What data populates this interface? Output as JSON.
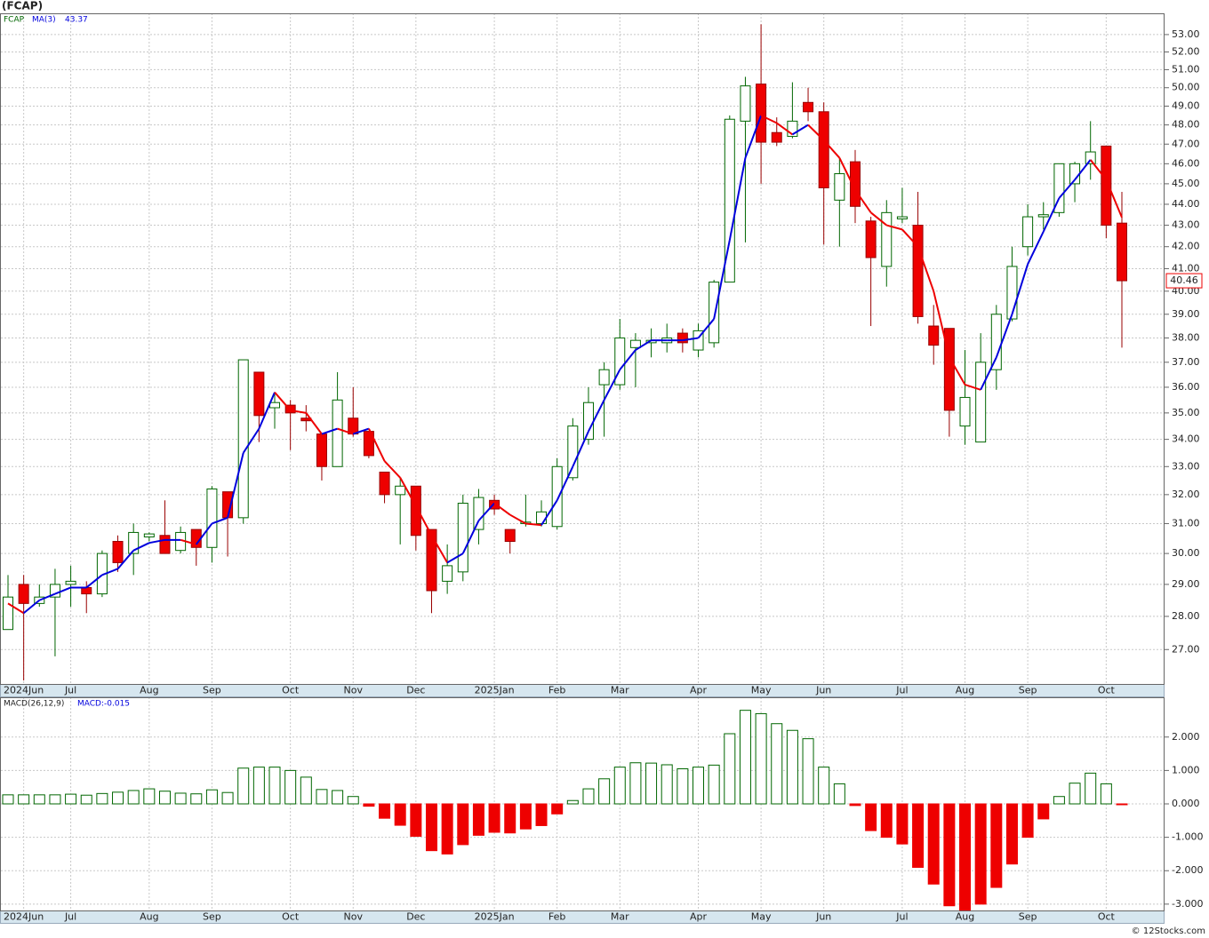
{
  "chart_data": [
    {
      "type": "candlestick",
      "title": "(FCAP)",
      "symbol": "FCAP",
      "ma_name": "MA(3)",
      "categories": [
        null,
        "2024Jun",
        null,
        null,
        "Jul",
        null,
        null,
        null,
        null,
        "Aug",
        null,
        null,
        null,
        "Sep",
        null,
        null,
        null,
        null,
        "Oct",
        null,
        null,
        null,
        "Nov",
        null,
        null,
        null,
        "Dec",
        null,
        null,
        null,
        null,
        "2025Jan",
        null,
        null,
        null,
        "Feb",
        null,
        null,
        null,
        "Mar",
        null,
        null,
        null,
        null,
        "Apr",
        null,
        null,
        null,
        "May",
        null,
        null,
        null,
        "Jun",
        null,
        null,
        null,
        null,
        "Jul",
        null,
        null,
        null,
        "Aug",
        null,
        null,
        null,
        "Sep",
        null,
        null,
        null,
        null,
        "Oct",
        null
      ],
      "open": [
        27.6,
        29.0,
        28.4,
        28.6,
        29.0,
        28.9,
        28.7,
        30.4,
        30.0,
        30.55,
        30.6,
        30.1,
        30.8,
        30.2,
        32.1,
        31.2,
        36.6,
        35.2,
        35.3,
        34.8,
        34.2,
        33.0,
        34.8,
        34.3,
        32.8,
        32.0,
        32.3,
        30.8,
        29.1,
        29.4,
        30.8,
        31.8,
        30.8,
        31.0,
        31.0,
        30.9,
        32.6,
        34.0,
        36.1,
        36.1,
        37.6,
        37.8,
        37.8,
        38.2,
        37.5,
        37.8,
        40.4,
        48.2,
        50.2,
        47.6,
        47.4,
        49.2,
        48.7,
        44.2,
        46.1,
        43.2,
        41.1,
        43.3,
        43.0,
        38.5,
        38.4,
        34.5,
        33.9,
        36.7,
        38.8,
        42.0,
        43.4,
        43.6,
        45.0,
        46.0,
        46.9,
        43.1
      ],
      "high": [
        29.3,
        29.3,
        29.0,
        29.5,
        29.6,
        29.1,
        30.1,
        30.6,
        31.0,
        30.7,
        31.8,
        30.9,
        30.8,
        32.3,
        32.1,
        37.1,
        36.6,
        35.8,
        35.5,
        35.3,
        34.2,
        36.6,
        36.0,
        34.3,
        32.8,
        32.6,
        32.3,
        30.8,
        30.3,
        32.0,
        32.2,
        32.0,
        30.8,
        32.0,
        31.8,
        33.3,
        34.8,
        36.0,
        37.0,
        38.8,
        38.2,
        38.4,
        38.6,
        38.4,
        38.6,
        40.5,
        48.5,
        50.6,
        53.6,
        48.4,
        50.3,
        50.0,
        49.2,
        46.3,
        46.7,
        43.4,
        44.2,
        44.8,
        44.6,
        39.4,
        38.4,
        37.5,
        38.2,
        39.4,
        42.0,
        44.0,
        44.1,
        46.0,
        46.1,
        48.2,
        46.9,
        44.6
      ],
      "low": [
        27.6,
        26.1,
        28.3,
        26.8,
        28.3,
        28.1,
        28.6,
        29.4,
        29.3,
        30.4,
        30.0,
        30.0,
        29.6,
        29.7,
        29.9,
        31.0,
        33.9,
        34.4,
        33.6,
        34.3,
        32.5,
        33.0,
        34.1,
        33.3,
        31.7,
        30.3,
        30.1,
        28.1,
        28.7,
        29.1,
        30.3,
        31.3,
        30.0,
        30.9,
        30.9,
        30.8,
        32.5,
        33.8,
        34.1,
        35.9,
        36.0,
        37.2,
        37.4,
        37.4,
        37.2,
        37.6,
        40.4,
        42.2,
        45.0,
        46.9,
        47.3,
        48.2,
        42.1,
        42.0,
        43.1,
        38.5,
        40.2,
        43.1,
        38.6,
        36.9,
        34.1,
        33.8,
        33.9,
        35.9,
        38.7,
        41.6,
        42.8,
        43.4,
        44.1,
        45.2,
        42.4,
        37.6
      ],
      "close": [
        28.6,
        28.4,
        28.6,
        29.0,
        29.1,
        28.7,
        30.0,
        29.7,
        30.7,
        30.65,
        30.0,
        30.7,
        30.2,
        32.2,
        31.2,
        37.1,
        34.9,
        35.4,
        35.0,
        34.7,
        33.0,
        35.5,
        34.2,
        33.4,
        32.0,
        32.3,
        30.6,
        28.8,
        29.6,
        31.7,
        31.9,
        31.5,
        30.4,
        31.05,
        31.4,
        33.0,
        34.5,
        35.4,
        36.7,
        38.0,
        37.9,
        37.9,
        38.0,
        37.8,
        38.3,
        40.4,
        48.3,
        50.1,
        47.1,
        47.1,
        48.2,
        48.7,
        44.8,
        45.5,
        43.9,
        41.5,
        43.6,
        43.4,
        38.9,
        37.7,
        35.1,
        35.6,
        37.0,
        39.0,
        41.1,
        43.4,
        43.5,
        46.0,
        46.0,
        46.6,
        43.0,
        40.46
      ],
      "ma": [
        28.4,
        28.1,
        28.5,
        28.7,
        28.9,
        28.9,
        29.3,
        29.5,
        30.1,
        30.35,
        30.45,
        30.45,
        30.3,
        31.0,
        31.2,
        33.5,
        34.4,
        35.8,
        35.1,
        35.0,
        34.2,
        34.4,
        34.2,
        34.4,
        33.2,
        32.6,
        31.6,
        30.6,
        29.7,
        30.0,
        31.1,
        31.7,
        31.3,
        31.0,
        30.95,
        31.8,
        33.0,
        34.3,
        35.5,
        36.7,
        37.5,
        37.9,
        37.9,
        37.9,
        38.0,
        38.8,
        42.3,
        46.3,
        48.5,
        48.1,
        47.5,
        48.0,
        47.2,
        46.3,
        44.7,
        43.6,
        43.0,
        42.8,
        42.0,
        40.0,
        37.2,
        36.1,
        35.9,
        37.2,
        39.0,
        41.2,
        42.7,
        44.3,
        45.2,
        46.2,
        45.2,
        43.37
      ],
      "ylim": [
        26.0,
        54.25
      ],
      "log_scale": true,
      "grid": true,
      "yticks": [
        {
          "value": 27,
          "label": "27.00"
        },
        {
          "value": 28,
          "label": "28.00"
        },
        {
          "value": 29,
          "label": "29.00"
        },
        {
          "value": 30,
          "label": "30.00"
        },
        {
          "value": 31,
          "label": "31.00"
        },
        {
          "value": 32,
          "label": "32.00"
        },
        {
          "value": 33,
          "label": "33.00"
        },
        {
          "value": 34,
          "label": "34.00"
        },
        {
          "value": 35,
          "label": "35.00"
        },
        {
          "value": 36,
          "label": "36.00"
        },
        {
          "value": 37,
          "label": "37.00"
        },
        {
          "value": 38,
          "label": "38.00"
        },
        {
          "value": 39,
          "label": "39.00"
        },
        {
          "value": 40,
          "label": "40.00"
        },
        {
          "value": 41,
          "label": "41.00"
        },
        {
          "value": 42,
          "label": "42.00"
        },
        {
          "value": 43,
          "label": "43.00"
        },
        {
          "value": 44,
          "label": "44.00"
        },
        {
          "value": 45,
          "label": "45.00"
        },
        {
          "value": 46,
          "label": "46.00"
        },
        {
          "value": 47,
          "label": "47.00"
        },
        {
          "value": 48,
          "label": "48.00"
        },
        {
          "value": 49,
          "label": "49.00"
        },
        {
          "value": 50,
          "label": "50.00"
        },
        {
          "value": 51,
          "label": "51.00"
        },
        {
          "value": 52,
          "label": "52.00"
        },
        {
          "value": 53,
          "label": "53.00"
        }
      ],
      "up_color": "#006600",
      "down_color": "#ee0000",
      "ma_up_color": "#0000dd",
      "ma_down_color": "#ee0000"
    },
    {
      "type": "bar",
      "name": "MACD(26,12,9)",
      "value_legend": "MACD:-0.015",
      "values": [
        0.27,
        0.27,
        0.27,
        0.27,
        0.29,
        0.26,
        0.31,
        0.35,
        0.4,
        0.45,
        0.38,
        0.32,
        0.3,
        0.42,
        0.34,
        1.07,
        1.1,
        1.1,
        1.0,
        0.8,
        0.43,
        0.4,
        0.22,
        -0.07,
        -0.43,
        -0.64,
        -0.97,
        -1.4,
        -1.5,
        -1.22,
        -0.94,
        -0.85,
        -0.87,
        -0.75,
        -0.65,
        -0.3,
        0.1,
        0.45,
        0.75,
        1.1,
        1.23,
        1.22,
        1.17,
        1.05,
        1.1,
        1.16,
        2.1,
        2.8,
        2.7,
        2.4,
        2.2,
        1.95,
        1.1,
        0.6,
        -0.05,
        -0.8,
        -1.0,
        -1.2,
        -1.9,
        -2.4,
        -3.05,
        -3.18,
        -3.0,
        -2.5,
        -1.8,
        -1.0,
        -0.45,
        0.22,
        0.62,
        0.92,
        0.6,
        -0.015
      ],
      "ylim": [
        -3.19,
        3.19
      ],
      "grid": true,
      "yticks": [
        {
          "value": -3,
          "label": "-3.000"
        },
        {
          "value": -2,
          "label": "-2.000"
        },
        {
          "value": -1,
          "label": "-1.000"
        },
        {
          "value": 0,
          "label": "0.000"
        },
        {
          "value": 1,
          "label": "1.000"
        },
        {
          "value": 2,
          "label": "2.000"
        }
      ],
      "up_color": "#006600",
      "down_color": "#ee0000"
    }
  ],
  "footer": "© 12Stocks.com"
}
